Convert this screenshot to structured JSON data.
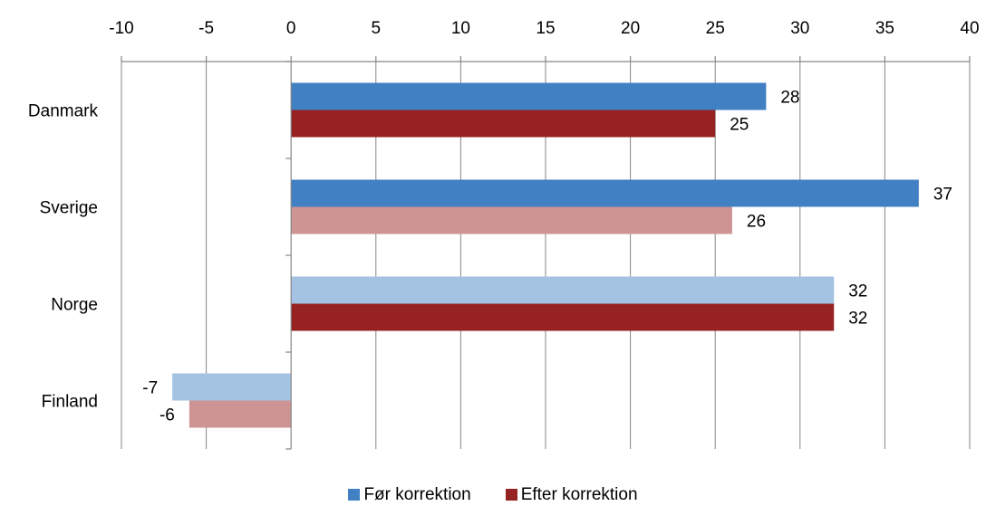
{
  "chart_data": {
    "type": "bar",
    "orientation": "horizontal",
    "categories": [
      "Danmark",
      "Sverige",
      "Norge",
      "Finland"
    ],
    "series": [
      {
        "name": "Før korrektion",
        "color": "#4180C2",
        "values": [
          28,
          37,
          32,
          -7
        ],
        "faded": [
          false,
          false,
          true,
          true
        ],
        "faded_color": "#A4C2E2"
      },
      {
        "name": "Efter korrektion",
        "color": "#962222",
        "values": [
          25,
          26,
          32,
          -6
        ],
        "faded": [
          false,
          true,
          false,
          true
        ],
        "faded_color": "#CE9393"
      }
    ],
    "xlim": [
      -10,
      40
    ],
    "xticks": [
      -10,
      -5,
      0,
      5,
      10,
      15,
      20,
      25,
      30,
      35,
      40
    ],
    "x_axis_position": "top",
    "grid": true,
    "legend_position": "bottom",
    "title": "",
    "xlabel": "",
    "ylabel": ""
  }
}
